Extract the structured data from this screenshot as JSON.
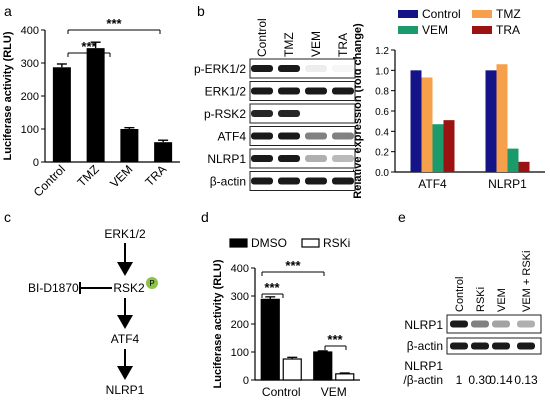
{
  "panels": {
    "a": {
      "letter": "a",
      "sig": [
        "***",
        "***"
      ]
    },
    "b": {
      "letter": "b",
      "lanes": [
        "Control",
        "TMZ",
        "VEM",
        "TRA"
      ],
      "blots": [
        "p-ERK1/2",
        "ERK1/2",
        "p-RSK2",
        "ATF4",
        "NLRP1",
        "β-actin"
      ]
    },
    "c": {
      "letter": "c",
      "nodes": [
        "ERK1/2",
        "RSK2",
        "ATF4",
        "NLRP1"
      ],
      "phospho": "P",
      "inhibitor": "BI-D1870"
    },
    "d": {
      "letter": "d",
      "sig": [
        "***",
        "***",
        "***"
      ]
    },
    "e": {
      "letter": "e",
      "lanes": [
        "Control",
        "RSKi",
        "VEM",
        "VEM + RSKi"
      ],
      "blots": [
        "NLRP1",
        "β-actin"
      ],
      "ratio_label_1": "NLRP1",
      "ratio_label_2": "/β-actin",
      "ratios": [
        "1",
        "0.30",
        "0.14",
        "0.13"
      ]
    }
  },
  "chart_data": [
    {
      "id": "a",
      "type": "bar",
      "categories": [
        "Control",
        "TMZ",
        "VEM",
        "TRA"
      ],
      "values": [
        287,
        345,
        100,
        60
      ],
      "errors": [
        10,
        18,
        4,
        6
      ],
      "ylabel": "Luciferase activity (RLU)",
      "ylim": [
        0,
        400
      ],
      "yticks": [
        "0",
        "100",
        "200",
        "300",
        "400"
      ],
      "color": "#000000"
    },
    {
      "id": "b",
      "type": "bar",
      "categories": [
        "ATF4",
        "NLRP1"
      ],
      "series": [
        {
          "name": "Control",
          "color": "#141488",
          "values": [
            1.0,
            1.0
          ]
        },
        {
          "name": "TMZ",
          "color": "#f7a04b",
          "values": [
            0.93,
            1.06
          ]
        },
        {
          "name": "VEM",
          "color": "#1b9a6c",
          "values": [
            0.47,
            0.23
          ]
        },
        {
          "name": "TRA",
          "color": "#9c1212",
          "values": [
            0.51,
            0.1
          ]
        }
      ],
      "ylabel": "Relative expression (fold change)",
      "ylim": [
        0,
        1.2
      ],
      "yticks": [
        "0.0",
        "0.2",
        "0.4",
        "0.6",
        "0.8",
        "1.0",
        "1.2"
      ],
      "legend": "top"
    },
    {
      "id": "d",
      "type": "bar",
      "categories": [
        "Control",
        "VEM"
      ],
      "series": [
        {
          "name": "DMSO",
          "color": "#000000",
          "values": [
            288,
            100
          ],
          "errors": [
            9,
            4
          ]
        },
        {
          "name": "RSKi",
          "color": "#ffffff",
          "values": [
            75,
            22
          ],
          "errors": [
            6,
            3
          ]
        }
      ],
      "ylabel": "Luciferase activity (RLU)",
      "ylim": [
        0,
        400
      ],
      "yticks": [
        "0",
        "100",
        "200",
        "300",
        "400"
      ],
      "legend": "top"
    }
  ]
}
